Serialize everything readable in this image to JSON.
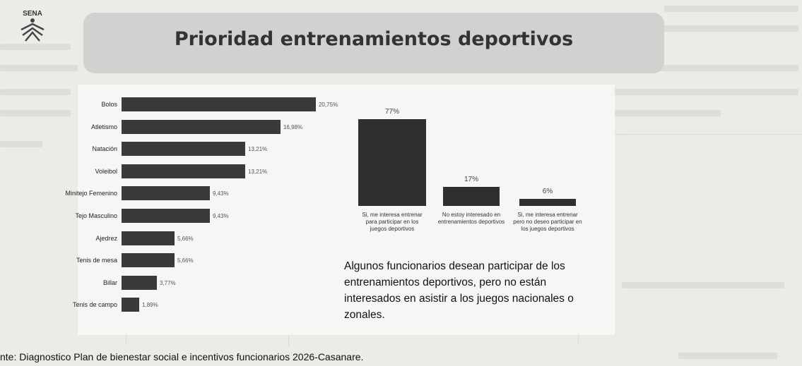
{
  "header": {
    "logo_text": "SENA",
    "title": "Prioridad entrenamientos deportivos"
  },
  "chart_data": [
    {
      "type": "bar",
      "orientation": "horizontal",
      "categories": [
        "Bolos",
        "Atletismo",
        "Natación",
        "Voleibol",
        "Minitejo Femenino",
        "Tejo Masculino",
        "Ajedrez",
        "Tenis de mesa",
        "Billar",
        "Tenis de campo"
      ],
      "values": [
        20.75,
        16.98,
        13.21,
        13.21,
        9.43,
        9.43,
        5.66,
        5.66,
        3.77,
        1.89
      ],
      "value_labels": [
        "20,75%",
        "16,98%",
        "13,21%",
        "13,21%",
        "9,43%",
        "9,43%",
        "5,66%",
        "5,66%",
        "3,77%",
        "1,89%"
      ],
      "bar_color": "#3a3a3a"
    },
    {
      "type": "bar",
      "categories": [
        "Si, me interesa entrenar para participar en los juegos deportivos",
        "No estoy interesado en entrenamientos deportivos",
        "Si, me interesa entrenar pero no deseo participar en los juegos deportivos"
      ],
      "values": [
        77,
        17,
        6
      ],
      "value_labels": [
        "77%",
        "17%",
        "6%"
      ],
      "bar_color": "#2f2f2f"
    }
  ],
  "note": "Algunos funcionarios desean participar de los entrenamientos deportivos, pero no están interesados en asistir a los juegos nacionales o zonales.",
  "source": "nte: Diagnostico Plan de bienestar social e incentivos funcionarios 2026-Casanare."
}
